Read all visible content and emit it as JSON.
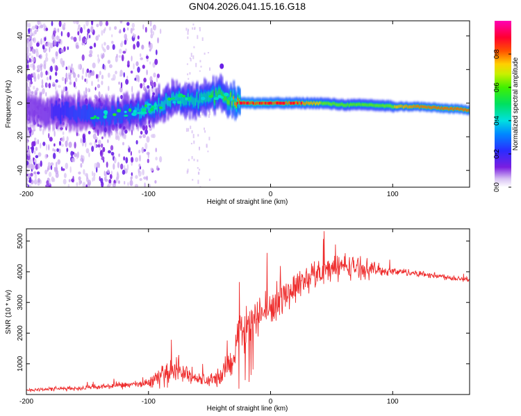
{
  "title": "GN04.2026.041.15.16.G18",
  "chart_data": [
    {
      "type": "heatmap",
      "title": "GN04.2026.041.15.16.G18",
      "xlabel": "Height of straight line (km)",
      "ylabel": "Frequency (Hz)",
      "xlim": [
        -200,
        163
      ],
      "ylim": [
        -50,
        49
      ],
      "xticks": [
        -200,
        -100,
        0,
        100
      ],
      "yticks": [
        -40,
        -20,
        0,
        20,
        40
      ],
      "colorbar": {
        "label": "Normalized spectral amplitude",
        "range": [
          0,
          1
        ],
        "ticks": [
          0.0,
          0.2,
          0.4,
          0.6,
          0.8
        ],
        "colormap": "rainbow (white→purple→blue→cyan→green→yellow→red→magenta)"
      },
      "ridge": {
        "description": "frequency centroid of the dominant spectral ridge",
        "x": [
          -200,
          -180,
          -160,
          -140,
          -120,
          -100,
          -80,
          -70,
          -60,
          -50,
          -40,
          -30,
          -20,
          0,
          20,
          40,
          60,
          80,
          100,
          120,
          140,
          163
        ],
        "freq": [
          -4,
          -5,
          -6,
          -8,
          -6,
          -3,
          2,
          3,
          1,
          3,
          5,
          1,
          0,
          0,
          0,
          0,
          -1,
          -1,
          -2,
          -2,
          -3,
          -4
        ],
        "amplitude": [
          0.15,
          0.2,
          0.25,
          0.35,
          0.35,
          0.4,
          0.45,
          0.5,
          0.5,
          0.55,
          0.55,
          0.8,
          0.9,
          0.85,
          0.8,
          0.75,
          0.7,
          0.7,
          0.75,
          0.8,
          0.85,
          0.85
        ]
      }
    },
    {
      "type": "line",
      "xlabel": "Height of straight line (km)",
      "ylabel": "SNR (10 * v/v)",
      "xlim": [
        -200,
        163
      ],
      "ylim": [
        0,
        5400
      ],
      "xticks": [
        -200,
        -100,
        0,
        100
      ],
      "yticks": [
        1000,
        2000,
        3000,
        4000,
        5000
      ],
      "series": [
        {
          "name": "SNR",
          "color": "#ee2c2c",
          "x": [
            -200,
            -180,
            -160,
            -150,
            -140,
            -120,
            -110,
            -100,
            -90,
            -80,
            -70,
            -60,
            -50,
            -40,
            -30,
            -25,
            -20,
            -10,
            0,
            10,
            20,
            30,
            40,
            50,
            60,
            70,
            80,
            90,
            100,
            110,
            120,
            130,
            140,
            150,
            163
          ],
          "mean": [
            150,
            180,
            200,
            220,
            250,
            300,
            320,
            380,
            600,
            800,
            700,
            500,
            450,
            600,
            1300,
            2000,
            2300,
            2600,
            2800,
            3200,
            3500,
            3800,
            4000,
            4100,
            4200,
            4150,
            4100,
            4050,
            4000,
            4000,
            3950,
            3900,
            3850,
            3800,
            3750
          ],
          "spread": [
            80,
            90,
            100,
            110,
            130,
            150,
            160,
            200,
            450,
            550,
            450,
            300,
            300,
            500,
            800,
            900,
            900,
            850,
            800,
            750,
            700,
            650,
            600,
            600,
            550,
            500,
            400,
            250,
            180,
            150,
            150,
            130,
            130,
            130,
            130
          ]
        }
      ]
    }
  ]
}
